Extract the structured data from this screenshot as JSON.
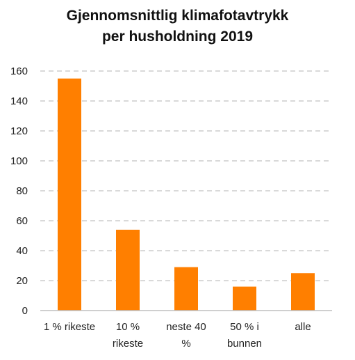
{
  "chart_data": {
    "type": "bar",
    "title_lines": [
      "Gjennomsnittlig klimafotavtrykk",
      "per husholdning 2019"
    ],
    "categories": [
      [
        "1 % rikeste"
      ],
      [
        "10 %",
        "rikeste"
      ],
      [
        "neste 40",
        "%"
      ],
      [
        "50 % i",
        "bunnen"
      ],
      [
        "alle"
      ]
    ],
    "values": [
      155,
      54,
      29,
      16,
      25
    ],
    "yticks": [
      0,
      20,
      40,
      60,
      80,
      100,
      120,
      140,
      160
    ],
    "ylim": [
      0,
      160
    ],
    "grid": true,
    "bar_color": "#ff7f00",
    "grid_color": "#d9d9d9",
    "axis_color": "#bfbfbf"
  }
}
